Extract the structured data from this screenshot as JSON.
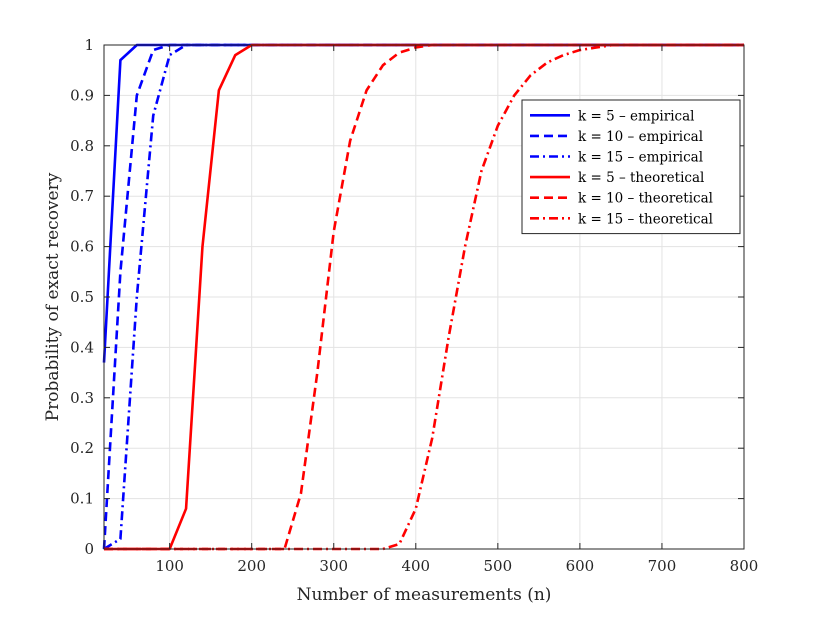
{
  "chart_data": {
    "type": "line",
    "title": "",
    "xlabel": "Number of measurements (n)",
    "ylabel": "Probability of exact recovery",
    "xlim": [
      20,
      800
    ],
    "ylim": [
      0,
      1
    ],
    "xticks": [
      "100",
      "200",
      "300",
      "400",
      "500",
      "600",
      "700",
      "800"
    ],
    "yticks": [
      "0",
      "0.1",
      "0.2",
      "0.3",
      "0.4",
      "0.5",
      "0.6",
      "0.7",
      "0.8",
      "0.9",
      "1"
    ],
    "grid": true,
    "legend_position": "top-right",
    "colors": {
      "empirical": "#0000ff",
      "theoretical": "#ff0000"
    },
    "series": [
      {
        "name": "k = 5 – empirical",
        "style": "solid",
        "color": "#0000ff",
        "x": [
          20,
          40,
          60,
          80,
          100,
          120,
          140,
          160,
          180,
          200,
          220,
          240,
          260,
          280,
          300,
          400,
          500,
          600,
          700,
          800
        ],
        "y": [
          0.37,
          0.97,
          1.0,
          1.0,
          1.0,
          1.0,
          1.0,
          1.0,
          1.0,
          1.0,
          1.0,
          1.0,
          1.0,
          1.0,
          1.0,
          1.0,
          1.0,
          1.0,
          1.0,
          1.0
        ]
      },
      {
        "name": "k = 10 – empirical",
        "style": "dashed",
        "color": "#0000ff",
        "x": [
          20,
          40,
          60,
          80,
          100,
          120,
          140,
          160,
          180,
          200,
          300,
          400,
          500,
          600,
          700,
          800
        ],
        "y": [
          0.0,
          0.55,
          0.9,
          0.99,
          1.0,
          1.0,
          1.0,
          1.0,
          1.0,
          1.0,
          1.0,
          1.0,
          1.0,
          1.0,
          1.0,
          1.0
        ]
      },
      {
        "name": "k = 15 – empirical",
        "style": "dashdot",
        "color": "#0000ff",
        "x": [
          20,
          40,
          60,
          80,
          100,
          120,
          140,
          160,
          180,
          200,
          300,
          400,
          500,
          600,
          700,
          800
        ],
        "y": [
          0.0,
          0.02,
          0.5,
          0.86,
          0.98,
          1.0,
          1.0,
          1.0,
          1.0,
          1.0,
          1.0,
          1.0,
          1.0,
          1.0,
          1.0,
          1.0
        ]
      },
      {
        "name": "k = 5 – theoretical",
        "style": "solid",
        "color": "#ff0000",
        "x": [
          20,
          100,
          120,
          140,
          160,
          180,
          200,
          220,
          240,
          300,
          400,
          500,
          600,
          700,
          800
        ],
        "y": [
          0.0,
          0.0,
          0.08,
          0.6,
          0.91,
          0.98,
          1.0,
          1.0,
          1.0,
          1.0,
          1.0,
          1.0,
          1.0,
          1.0,
          1.0
        ]
      },
      {
        "name": "k = 10 – theoretical",
        "style": "dashed",
        "color": "#ff0000",
        "x": [
          20,
          100,
          200,
          220,
          240,
          260,
          280,
          300,
          320,
          340,
          360,
          380,
          400,
          420,
          440,
          460,
          500,
          600,
          700,
          800
        ],
        "y": [
          0.0,
          0.0,
          0.0,
          0.0,
          0.0,
          0.11,
          0.35,
          0.63,
          0.81,
          0.91,
          0.96,
          0.985,
          0.995,
          1.0,
          1.0,
          1.0,
          1.0,
          1.0,
          1.0,
          1.0
        ]
      },
      {
        "name": "k = 15 – theoretical",
        "style": "dashdot",
        "color": "#ff0000",
        "x": [
          20,
          100,
          200,
          300,
          360,
          380,
          400,
          420,
          440,
          460,
          480,
          500,
          520,
          540,
          560,
          580,
          600,
          620,
          640,
          660,
          680,
          700,
          800
        ],
        "y": [
          0.0,
          0.0,
          0.0,
          0.0,
          0.0,
          0.01,
          0.08,
          0.22,
          0.42,
          0.6,
          0.75,
          0.84,
          0.9,
          0.94,
          0.965,
          0.98,
          0.99,
          0.995,
          1.0,
          1.0,
          1.0,
          1.0,
          1.0
        ]
      }
    ]
  }
}
